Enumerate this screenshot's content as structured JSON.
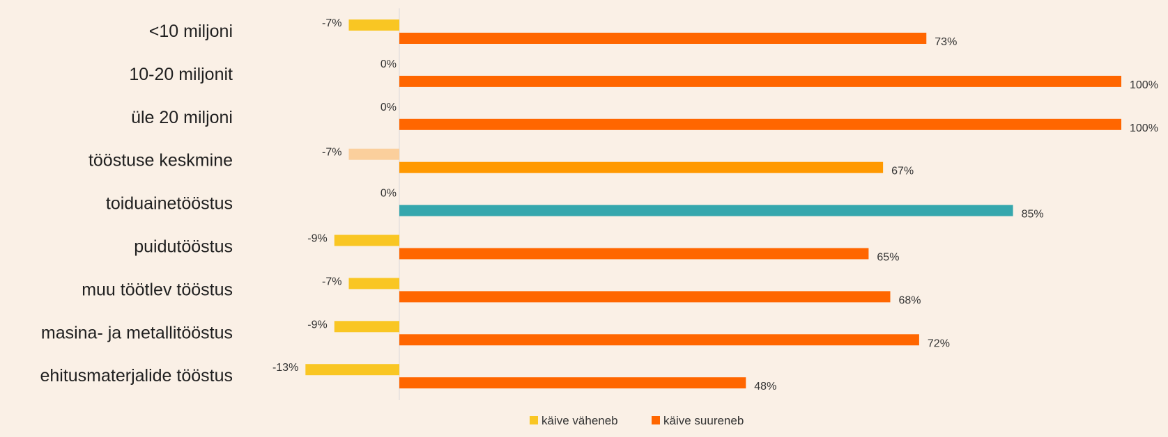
{
  "chart_data": {
    "type": "bar",
    "orientation": "horizontal",
    "categories": [
      "<10 miljoni",
      "10-20 miljonit",
      "üle 20 miljoni",
      "tööstuse keskmine",
      "toiduainetööstus",
      "puidutööstus",
      "muu töötlev tööstus",
      "masina- ja metallitööstus",
      "ehitusmaterjalide tööstus"
    ],
    "series": [
      {
        "name": "käive väheneb",
        "color": "#f9c623",
        "values": [
          -7,
          0,
          0,
          -7,
          0,
          -9,
          -7,
          -9,
          -13
        ],
        "labels": [
          "-7%",
          "0%",
          "0%",
          "-7%",
          "0%",
          "-9%",
          "-7%",
          "-9%",
          "-13%"
        ],
        "colors": [
          "#f9c623",
          "#f9c623",
          "#f9c623",
          "#fbcf9c",
          "#f9c623",
          "#f9c623",
          "#f9c623",
          "#f9c623",
          "#f9c623"
        ]
      },
      {
        "name": "käive suureneb",
        "color": "#ff6600",
        "values": [
          73,
          100,
          100,
          67,
          85,
          65,
          68,
          72,
          48
        ],
        "labels": [
          "73%",
          "100%",
          "100%",
          "67%",
          "85%",
          "65%",
          "68%",
          "72%",
          "48%"
        ],
        "colors": [
          "#ff6600",
          "#ff6600",
          "#ff6600",
          "#ff9900",
          "#35a7ad",
          "#ff6600",
          "#ff6600",
          "#ff6600",
          "#ff6600"
        ]
      }
    ],
    "xlim": [
      -14,
      100
    ],
    "grid": false,
    "legend_position": "bottom",
    "title": "",
    "xlabel": "",
    "ylabel": ""
  }
}
